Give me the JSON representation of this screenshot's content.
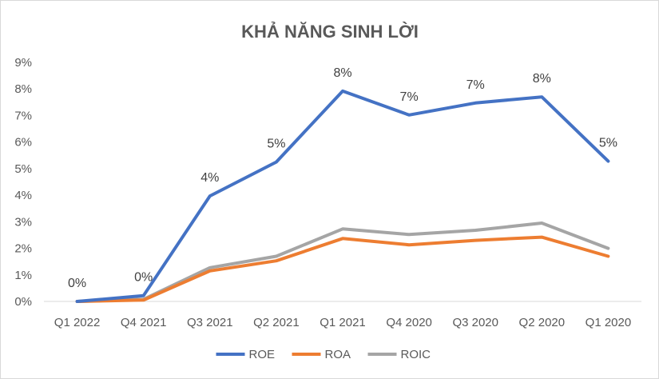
{
  "chart_data": {
    "type": "line",
    "title": "KHẢ NĂNG SINH LỜI",
    "xlabel": "",
    "ylabel": "",
    "categories": [
      "Q1 2022",
      "Q4 2021",
      "Q3 2021",
      "Q2 2021",
      "Q1 2021",
      "Q4 2020",
      "Q3 2020",
      "Q2 2020",
      "Q1 2020"
    ],
    "ylim": [
      0,
      9
    ],
    "y_ticks": [
      "0%",
      "1%",
      "2%",
      "3%",
      "4%",
      "5%",
      "6%",
      "7%",
      "8%",
      "9%"
    ],
    "grid": false,
    "legend_position": "bottom",
    "series": [
      {
        "name": "ROE",
        "color": "#4472c4",
        "values": [
          0.0,
          0.22,
          3.97,
          5.25,
          7.92,
          7.02,
          7.47,
          7.7,
          5.28
        ],
        "data_labels": [
          "0%",
          "0%",
          "4%",
          "5%",
          "8%",
          "7%",
          "7%",
          "8%",
          "5%"
        ]
      },
      {
        "name": "ROA",
        "color": "#ed7d31",
        "values": [
          0.0,
          0.05,
          1.15,
          1.53,
          2.37,
          2.13,
          2.3,
          2.42,
          1.7
        ]
      },
      {
        "name": "ROIC",
        "color": "#a5a5a5",
        "values": [
          0.0,
          0.08,
          1.27,
          1.7,
          2.73,
          2.52,
          2.68,
          2.95,
          2.0
        ]
      }
    ]
  }
}
